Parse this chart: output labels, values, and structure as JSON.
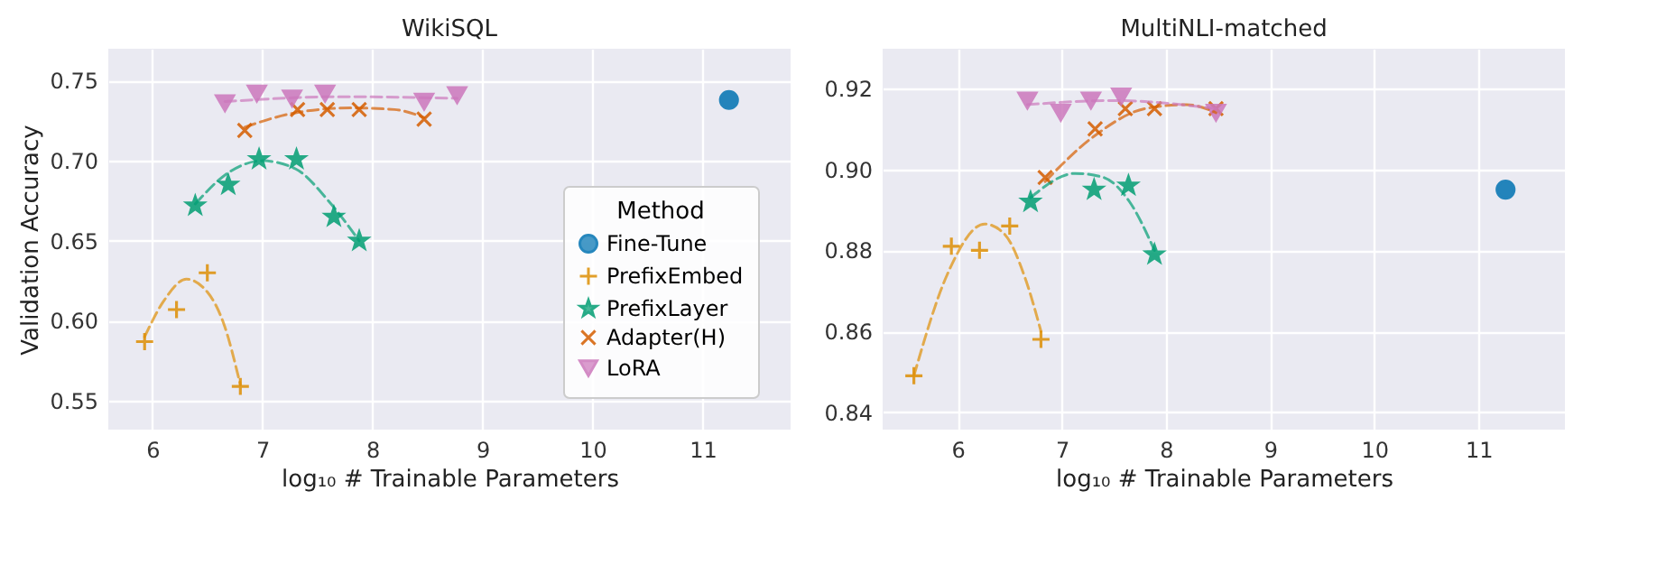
{
  "chart_data": [
    {
      "type": "scatter",
      "title": "WikiSQL",
      "xlabel": "log₁₀ # Trainable Parameters",
      "ylabel": "Validation Accuracy",
      "xlim": [
        5.6,
        11.8
      ],
      "ylim": [
        0.532,
        0.77
      ],
      "xticks": [
        6,
        7,
        8,
        9,
        10,
        11
      ],
      "yticks": [
        0.55,
        {
          "value": 0.6,
          "label": "0.60"
        },
        0.65,
        {
          "value": 0.7,
          "label": "0.70"
        },
        0.75
      ],
      "grid": true,
      "legend": "bottom right",
      "legend_title": "Method",
      "series": [
        {
          "name": "Fine-Tune",
          "color": "#0173b2",
          "marker": "circle",
          "x": [
            11.24
          ],
          "values": [
            0.738
          ]
        },
        {
          "name": "PrefixEmbed",
          "color": "#de8f05",
          "marker": "plus",
          "x": [
            5.93,
            6.22,
            6.5,
            6.8
          ],
          "values": [
            0.587,
            0.607,
            0.63,
            0.559
          ]
        },
        {
          "name": "PrefixLayer",
          "color": "#029e73",
          "marker": "star",
          "x": [
            6.39,
            6.69,
            6.97,
            7.31,
            7.65,
            7.88
          ],
          "values": [
            0.672,
            0.685,
            0.701,
            0.701,
            0.665,
            0.65
          ]
        },
        {
          "name": "Adapter(H)",
          "color": "#d55e00",
          "marker": "cross",
          "x": [
            6.84,
            7.32,
            7.59,
            7.88,
            8.47
          ],
          "values": [
            0.719,
            0.732,
            0.732,
            0.732,
            0.726
          ]
        },
        {
          "name": "LoRA",
          "color": "#cc78bc",
          "marker": "triangle",
          "x": [
            6.66,
            6.95,
            7.27,
            7.57,
            8.47,
            8.77
          ],
          "values": [
            0.736,
            0.742,
            0.739,
            0.742,
            0.737,
            0.741
          ]
        },
        {
          "type": "line",
          "line_style": "dashed",
          "color": "#de8f05",
          "x": [
            5.93,
            6.1,
            6.31,
            6.5,
            6.65,
            6.8
          ],
          "values": [
            0.59,
            0.612,
            0.626,
            0.618,
            0.598,
            0.56
          ]
        },
        {
          "type": "line",
          "line_style": "dashed",
          "color": "#029e73",
          "x": [
            6.39,
            6.7,
            7.0,
            7.3,
            7.6,
            7.88
          ],
          "values": [
            0.673,
            0.693,
            0.7,
            0.695,
            0.675,
            0.65
          ]
        },
        {
          "type": "line",
          "line_style": "dashed",
          "color": "#d55e00",
          "x": [
            6.84,
            7.3,
            7.8,
            8.2,
            8.47
          ],
          "values": [
            0.721,
            0.73,
            0.733,
            0.732,
            0.727
          ]
        },
        {
          "type": "line",
          "line_style": "dashed",
          "color": "#cc78bc",
          "x": [
            6.66,
            7.7,
            8.77
          ],
          "values": [
            0.737,
            0.74,
            0.739
          ]
        }
      ]
    },
    {
      "type": "scatter",
      "title": "MultiNLI-matched",
      "xlabel": "log₁₀ # Trainable Parameters",
      "xlim": [
        5.28,
        11.83
      ],
      "ylim": [
        0.8357,
        0.9298
      ],
      "xticks": [
        6,
        7,
        8,
        9,
        10,
        11
      ],
      "yticks": [
        0.84,
        0.86,
        0.88,
        {
          "value": 0.9,
          "label": "0.90"
        },
        0.92
      ],
      "grid": true,
      "series": [
        {
          "color": "#0173b2",
          "marker": "circle",
          "x": [
            11.26
          ],
          "values": [
            0.895
          ]
        },
        {
          "color": "#de8f05",
          "marker": "plus",
          "x": [
            5.58,
            5.94,
            6.21,
            6.5,
            6.8
          ],
          "values": [
            0.849,
            0.881,
            0.88,
            0.886,
            0.858
          ]
        },
        {
          "color": "#029e73",
          "marker": "star",
          "x": [
            6.7,
            7.31,
            7.64,
            7.89
          ],
          "values": [
            0.892,
            0.895,
            0.896,
            0.879
          ]
        },
        {
          "color": "#d55e00",
          "marker": "cross",
          "x": [
            6.84,
            7.32,
            7.61,
            7.89,
            8.48
          ],
          "values": [
            0.898,
            0.91,
            0.915,
            0.915,
            0.915
          ]
        },
        {
          "color": "#cc78bc",
          "marker": "triangle",
          "x": [
            6.67,
            6.99,
            7.28,
            7.57,
            8.48
          ],
          "values": [
            0.917,
            0.914,
            0.917,
            0.918,
            0.914
          ]
        },
        {
          "type": "line",
          "line_style": "dashed",
          "color": "#de8f05",
          "x": [
            5.58,
            5.9,
            6.26,
            6.45,
            6.65,
            6.8
          ],
          "values": [
            0.849,
            0.874,
            0.8865,
            0.884,
            0.873,
            0.86
          ]
        },
        {
          "type": "line",
          "line_style": "dashed",
          "color": "#029e73",
          "x": [
            6.7,
            7.13,
            7.4,
            7.65,
            7.89
          ],
          "values": [
            0.893,
            0.899,
            0.898,
            0.892,
            0.88
          ]
        },
        {
          "type": "line",
          "line_style": "dashed",
          "color": "#d55e00",
          "x": [
            6.84,
            7.3,
            7.8,
            8.2,
            8.48
          ],
          "values": [
            0.897,
            0.908,
            0.915,
            0.916,
            0.914
          ]
        },
        {
          "type": "line",
          "line_style": "dashed",
          "color": "#cc78bc",
          "x": [
            6.67,
            7.5,
            8.48
          ],
          "values": [
            0.916,
            0.917,
            0.915
          ]
        }
      ]
    }
  ]
}
